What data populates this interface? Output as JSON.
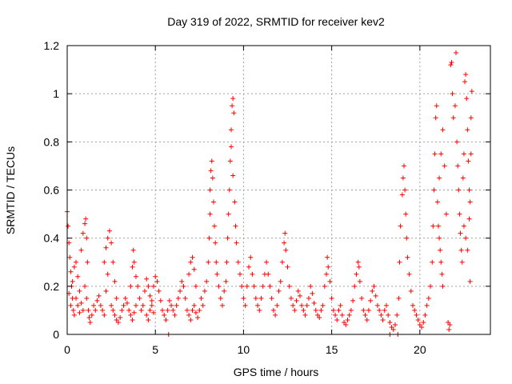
{
  "chart_data": {
    "type": "scatter",
    "title": "Day 319 of 2022, SRMTID for receiver kev2",
    "xlabel": "GPS time / hours",
    "ylabel": "SRMTID / TECUs",
    "xlim": [
      0,
      24
    ],
    "ylim": [
      0,
      1.2
    ],
    "x_ticks": [
      0,
      5,
      10,
      15,
      20
    ],
    "x_tick_labels": [
      "0",
      "5",
      "10",
      "15",
      "20"
    ],
    "y_ticks": [
      0,
      0.2,
      0.4,
      0.6,
      0.8,
      1.0,
      1.2
    ],
    "y_tick_labels": [
      "0",
      "0.2",
      "0.4",
      "0.6",
      "0.8",
      "1",
      "1.2"
    ],
    "grid": true,
    "marker": "+",
    "color": "#ff0000",
    "series": [
      {
        "name": "kev2",
        "points": [
          [
            0.0,
            0.51
          ],
          [
            0.05,
            0.45
          ],
          [
            0.1,
            0.38
          ],
          [
            0.15,
            0.32
          ],
          [
            0.2,
            0.26
          ],
          [
            0.25,
            0.2
          ],
          [
            0.3,
            0.15
          ],
          [
            0.35,
            0.1
          ],
          [
            0.4,
            0.08
          ],
          [
            0.1,
            0.17
          ],
          [
            0.2,
            0.12
          ],
          [
            0.3,
            0.22
          ],
          [
            0.4,
            0.28
          ],
          [
            0.5,
            0.3
          ],
          [
            0.6,
            0.24
          ],
          [
            0.7,
            0.18
          ],
          [
            0.8,
            0.13
          ],
          [
            0.9,
            0.1
          ],
          [
            0.5,
            0.15
          ],
          [
            0.6,
            0.12
          ],
          [
            0.7,
            0.09
          ],
          [
            0.8,
            0.35
          ],
          [
            0.9,
            0.42
          ],
          [
            1.0,
            0.46
          ],
          [
            1.05,
            0.48
          ],
          [
            1.1,
            0.4
          ],
          [
            1.15,
            0.3
          ],
          [
            1.0,
            0.2
          ],
          [
            1.1,
            0.15
          ],
          [
            1.2,
            0.1
          ],
          [
            1.25,
            0.07
          ],
          [
            1.3,
            0.05
          ],
          [
            1.4,
            0.08
          ],
          [
            1.5,
            0.12
          ],
          [
            1.6,
            0.1
          ],
          [
            1.7,
            0.14
          ],
          [
            1.8,
            0.16
          ],
          [
            1.9,
            0.12
          ],
          [
            2.0,
            0.1
          ],
          [
            2.1,
            0.08
          ],
          [
            2.2,
            0.18
          ],
          [
            2.3,
            0.25
          ],
          [
            2.1,
            0.3
          ],
          [
            2.2,
            0.36
          ],
          [
            2.3,
            0.4
          ],
          [
            2.4,
            0.43
          ],
          [
            2.5,
            0.38
          ],
          [
            2.6,
            0.3
          ],
          [
            2.7,
            0.22
          ],
          [
            2.8,
            0.15
          ],
          [
            2.5,
            0.12
          ],
          [
            2.6,
            0.1
          ],
          [
            2.7,
            0.08
          ],
          [
            2.8,
            0.06
          ],
          [
            2.9,
            0.05
          ],
          [
            3.0,
            0.07
          ],
          [
            3.1,
            0.1
          ],
          [
            3.2,
            0.12
          ],
          [
            3.3,
            0.15
          ],
          [
            3.4,
            0.13
          ],
          [
            3.5,
            0.1
          ],
          [
            3.6,
            0.08
          ],
          [
            3.7,
            0.06
          ],
          [
            3.8,
            0.09
          ],
          [
            3.9,
            0.12
          ],
          [
            3.6,
            0.2
          ],
          [
            3.7,
            0.28
          ],
          [
            3.75,
            0.35
          ],
          [
            3.8,
            0.3
          ],
          [
            3.9,
            0.24
          ],
          [
            4.0,
            0.2
          ],
          [
            4.1,
            0.15
          ],
          [
            4.2,
            0.1
          ],
          [
            4.3,
            0.12
          ],
          [
            4.4,
            0.18
          ],
          [
            4.5,
            0.23
          ],
          [
            4.6,
            0.2
          ],
          [
            4.7,
            0.16
          ],
          [
            4.8,
            0.12
          ],
          [
            4.9,
            0.09
          ],
          [
            4.5,
            0.08
          ],
          [
            4.6,
            0.06
          ],
          [
            4.7,
            0.1
          ],
          [
            4.8,
            0.14
          ],
          [
            4.9,
            0.2
          ],
          [
            5.0,
            0.24
          ],
          [
            5.1,
            0.22
          ],
          [
            5.2,
            0.18
          ],
          [
            5.3,
            0.14
          ],
          [
            5.4,
            0.1
          ],
          [
            5.5,
            0.08
          ],
          [
            5.6,
            0.06
          ],
          [
            5.7,
            0.1
          ],
          [
            5.8,
            0.14
          ],
          [
            5.9,
            0.12
          ],
          [
            5.75,
            0.0
          ],
          [
            6.0,
            0.1
          ],
          [
            6.1,
            0.08
          ],
          [
            6.2,
            0.12
          ],
          [
            6.3,
            0.15
          ],
          [
            6.4,
            0.18
          ],
          [
            6.5,
            0.22
          ],
          [
            6.6,
            0.2
          ],
          [
            6.7,
            0.15
          ],
          [
            6.8,
            0.1
          ],
          [
            6.9,
            0.08
          ],
          [
            7.0,
            0.06
          ],
          [
            7.1,
            0.1
          ],
          [
            7.2,
            0.12
          ],
          [
            7.3,
            0.09
          ],
          [
            7.4,
            0.07
          ],
          [
            7.5,
            0.1
          ],
          [
            6.9,
            0.25
          ],
          [
            7.0,
            0.3
          ],
          [
            7.1,
            0.32
          ],
          [
            7.2,
            0.27
          ],
          [
            7.3,
            0.2
          ],
          [
            7.6,
            0.15
          ],
          [
            7.7,
            0.12
          ],
          [
            7.8,
            0.18
          ],
          [
            7.9,
            0.22
          ],
          [
            8.0,
            0.3
          ],
          [
            8.05,
            0.4
          ],
          [
            8.1,
            0.5
          ],
          [
            8.1,
            0.6
          ],
          [
            8.15,
            0.68
          ],
          [
            8.2,
            0.72
          ],
          [
            8.25,
            0.65
          ],
          [
            8.3,
            0.55
          ],
          [
            8.35,
            0.45
          ],
          [
            8.4,
            0.38
          ],
          [
            8.45,
            0.3
          ],
          [
            8.5,
            0.25
          ],
          [
            8.6,
            0.2
          ],
          [
            8.7,
            0.15
          ],
          [
            8.8,
            0.12
          ],
          [
            8.9,
            0.18
          ],
          [
            9.0,
            0.22
          ],
          [
            9.05,
            0.3
          ],
          [
            9.1,
            0.4
          ],
          [
            9.15,
            0.5
          ],
          [
            9.2,
            0.6
          ],
          [
            9.25,
            0.72
          ],
          [
            9.3,
            0.85
          ],
          [
            9.35,
            0.95
          ],
          [
            9.4,
            0.98
          ],
          [
            9.45,
            0.92
          ],
          [
            9.3,
            0.78
          ],
          [
            9.4,
            0.66
          ],
          [
            9.5,
            0.55
          ],
          [
            9.55,
            0.45
          ],
          [
            9.6,
            0.38
          ],
          [
            9.7,
            0.3
          ],
          [
            9.8,
            0.25
          ],
          [
            9.9,
            0.2
          ],
          [
            10.0,
            0.15
          ],
          [
            10.1,
            0.12
          ],
          [
            10.2,
            0.2
          ],
          [
            10.3,
            0.28
          ],
          [
            10.4,
            0.32
          ],
          [
            10.5,
            0.25
          ],
          [
            10.6,
            0.2
          ],
          [
            10.7,
            0.15
          ],
          [
            10.8,
            0.12
          ],
          [
            10.9,
            0.1
          ],
          [
            11.0,
            0.15
          ],
          [
            11.1,
            0.2
          ],
          [
            11.2,
            0.25
          ],
          [
            11.3,
            0.3
          ],
          [
            11.4,
            0.25
          ],
          [
            11.5,
            0.2
          ],
          [
            11.6,
            0.15
          ],
          [
            11.7,
            0.1
          ],
          [
            11.8,
            0.08
          ],
          [
            11.9,
            0.12
          ],
          [
            12.0,
            0.18
          ],
          [
            12.1,
            0.22
          ],
          [
            12.2,
            0.3
          ],
          [
            12.3,
            0.38
          ],
          [
            12.35,
            0.42
          ],
          [
            12.4,
            0.35
          ],
          [
            12.5,
            0.28
          ],
          [
            12.6,
            0.2
          ],
          [
            12.7,
            0.15
          ],
          [
            12.8,
            0.12
          ],
          [
            12.9,
            0.1
          ],
          [
            13.0,
            0.14
          ],
          [
            13.1,
            0.18
          ],
          [
            13.2,
            0.16
          ],
          [
            13.3,
            0.12
          ],
          [
            13.4,
            0.1
          ],
          [
            13.5,
            0.08
          ],
          [
            13.6,
            0.12
          ],
          [
            13.7,
            0.15
          ],
          [
            13.8,
            0.2
          ],
          [
            13.9,
            0.17
          ],
          [
            14.0,
            0.13
          ],
          [
            14.1,
            0.1
          ],
          [
            14.2,
            0.08
          ],
          [
            14.3,
            0.07
          ],
          [
            14.4,
            0.1
          ],
          [
            14.5,
            0.12
          ],
          [
            14.6,
            0.2
          ],
          [
            14.7,
            0.25
          ],
          [
            14.8,
            0.28
          ],
          [
            14.9,
            0.22
          ],
          [
            14.75,
            0.32
          ],
          [
            15.0,
            0.15
          ],
          [
            15.1,
            0.1
          ],
          [
            15.2,
            0.08
          ],
          [
            15.3,
            0.06
          ],
          [
            15.4,
            0.1
          ],
          [
            15.5,
            0.12
          ],
          [
            15.6,
            0.08
          ],
          [
            15.7,
            0.05
          ],
          [
            15.8,
            0.04
          ],
          [
            15.9,
            0.06
          ],
          [
            16.0,
            0.08
          ],
          [
            16.1,
            0.1
          ],
          [
            16.2,
            0.14
          ],
          [
            16.3,
            0.2
          ],
          [
            16.4,
            0.25
          ],
          [
            16.5,
            0.3
          ],
          [
            16.55,
            0.28
          ],
          [
            16.6,
            0.22
          ],
          [
            16.7,
            0.15
          ],
          [
            16.8,
            0.1
          ],
          [
            16.9,
            0.08
          ],
          [
            17.0,
            0.06
          ],
          [
            17.1,
            0.1
          ],
          [
            17.2,
            0.14
          ],
          [
            17.3,
            0.18
          ],
          [
            17.4,
            0.2
          ],
          [
            17.5,
            0.16
          ],
          [
            17.6,
            0.12
          ],
          [
            17.7,
            0.1
          ],
          [
            17.8,
            0.08
          ],
          [
            17.9,
            0.06
          ],
          [
            18.0,
            0.1
          ],
          [
            18.1,
            0.12
          ],
          [
            18.2,
            0.08
          ],
          [
            18.3,
            0.05
          ],
          [
            18.4,
            0.03
          ],
          [
            18.5,
            0.02
          ],
          [
            18.6,
            0.04
          ],
          [
            18.7,
            0.08
          ],
          [
            18.8,
            0.15
          ],
          [
            18.3,
            0.0
          ],
          [
            18.75,
            0.0
          ],
          [
            18.85,
            0.3
          ],
          [
            18.9,
            0.45
          ],
          [
            19.0,
            0.58
          ],
          [
            19.05,
            0.65
          ],
          [
            19.1,
            0.7
          ],
          [
            19.15,
            0.6
          ],
          [
            19.2,
            0.5
          ],
          [
            19.25,
            0.4
          ],
          [
            19.3,
            0.32
          ],
          [
            19.4,
            0.25
          ],
          [
            19.5,
            0.18
          ],
          [
            19.6,
            0.12
          ],
          [
            19.7,
            0.1
          ],
          [
            19.8,
            0.08
          ],
          [
            19.9,
            0.06
          ],
          [
            20.0,
            0.04
          ],
          [
            20.1,
            0.03
          ],
          [
            20.2,
            0.05
          ],
          [
            20.3,
            0.08
          ],
          [
            20.4,
            0.12
          ],
          [
            20.5,
            0.15
          ],
          [
            20.6,
            0.2
          ],
          [
            20.7,
            0.3
          ],
          [
            20.75,
            0.45
          ],
          [
            20.8,
            0.6
          ],
          [
            20.85,
            0.75
          ],
          [
            20.9,
            0.9
          ],
          [
            20.95,
            0.95
          ],
          [
            21.0,
            0.55
          ],
          [
            21.05,
            0.45
          ],
          [
            21.1,
            0.4
          ],
          [
            21.15,
            0.35
          ],
          [
            21.2,
            0.3
          ],
          [
            21.25,
            0.25
          ],
          [
            21.3,
            0.2
          ],
          [
            21.1,
            0.65
          ],
          [
            21.2,
            0.75
          ],
          [
            21.3,
            0.85
          ],
          [
            21.4,
            0.7
          ],
          [
            21.5,
            0.5
          ],
          [
            21.6,
            0.05
          ],
          [
            21.65,
            0.02
          ],
          [
            21.7,
            0.04
          ],
          [
            21.75,
            1.12
          ],
          [
            21.8,
            1.13
          ],
          [
            21.85,
            1.0
          ],
          [
            21.9,
            0.9
          ],
          [
            22.0,
            0.95
          ],
          [
            22.05,
            1.17
          ],
          [
            22.1,
            0.8
          ],
          [
            22.15,
            0.7
          ],
          [
            22.2,
            0.6
          ],
          [
            22.25,
            0.5
          ],
          [
            22.3,
            0.42
          ],
          [
            22.35,
            0.35
          ],
          [
            22.4,
            0.3
          ],
          [
            22.45,
            0.65
          ],
          [
            22.5,
            0.75
          ],
          [
            22.55,
            1.05
          ],
          [
            22.6,
            1.08
          ],
          [
            22.65,
            0.98
          ],
          [
            22.7,
            0.85
          ],
          [
            22.75,
            0.72
          ],
          [
            22.8,
            0.6
          ],
          [
            22.85,
            0.55
          ],
          [
            22.9,
            0.9
          ],
          [
            22.95,
            1.01
          ],
          [
            22.5,
            0.45
          ],
          [
            22.6,
            0.4
          ],
          [
            22.7,
            0.35
          ],
          [
            22.8,
            0.48
          ],
          [
            22.85,
            0.22
          ],
          [
            22.9,
            0.75
          ]
        ]
      }
    ]
  }
}
